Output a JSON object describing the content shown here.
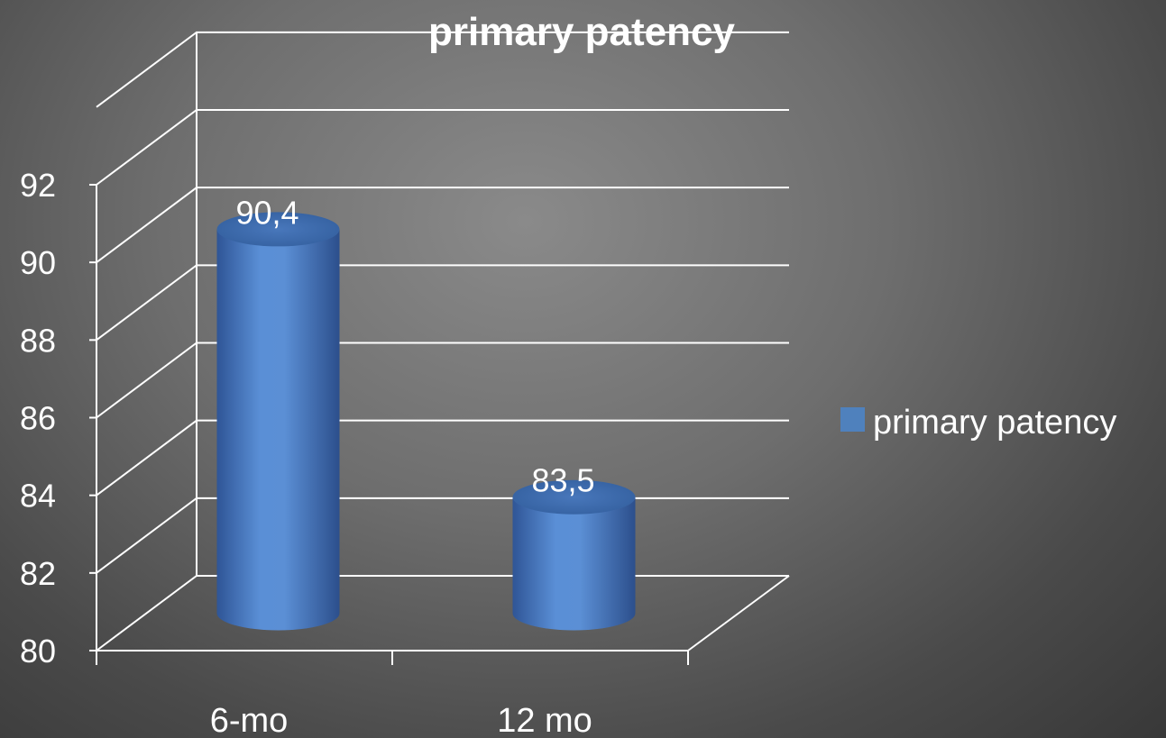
{
  "chart_data": {
    "type": "bar",
    "style": "3d-cylinder",
    "title": "primary patency",
    "categories": [
      "6-mo",
      "12 mo"
    ],
    "series": [
      {
        "name": "primary patency",
        "values": [
          90.4,
          83.5
        ],
        "color": "#4f81bd"
      }
    ],
    "data_labels": [
      "90,4",
      "83,5"
    ],
    "xlabel": "",
    "ylabel": "",
    "ylim": [
      80,
      92
    ],
    "yticks": [
      "80",
      "82",
      "84",
      "86",
      "88",
      "90",
      "92"
    ],
    "grid": true,
    "legend_position": "right"
  }
}
